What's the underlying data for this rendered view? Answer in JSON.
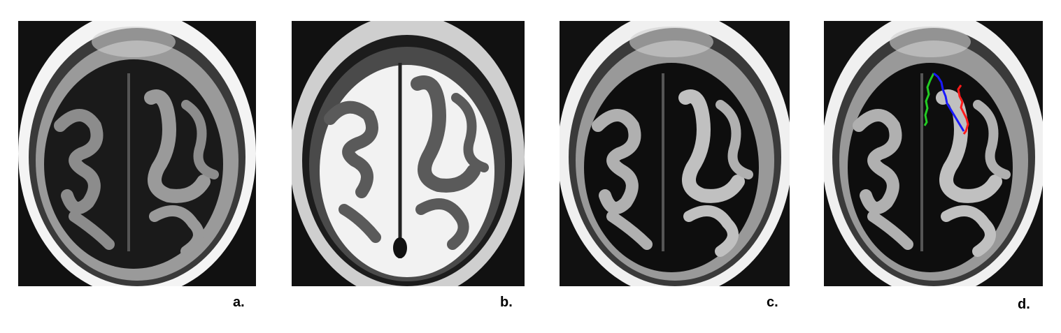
{
  "panels": [
    {
      "id": "a",
      "caption": "a."
    },
    {
      "id": "b",
      "caption": "b."
    },
    {
      "id": "c",
      "caption": "c."
    },
    {
      "id": "d",
      "caption": "d."
    }
  ],
  "contour_colors": {
    "green": "#22cc22",
    "blue": "#1a1aff",
    "red": "#ff1a1a"
  }
}
